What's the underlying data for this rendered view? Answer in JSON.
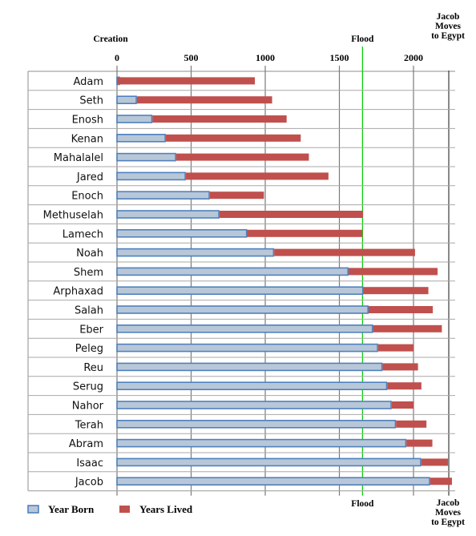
{
  "chart_data": {
    "type": "bar",
    "stacked": true,
    "orientation": "horizontal",
    "categories": [
      "Adam",
      "Seth",
      "Enosh",
      "Kenan",
      "Mahalalel",
      "Jared",
      "Enoch",
      "Methuselah",
      "Lamech",
      "Noah",
      "Shem",
      "Arphaxad",
      "Salah",
      "Eber",
      "Peleg",
      "Reu",
      "Serug",
      "Nahor",
      "Terah",
      "Abram",
      "Isaac",
      "Jacob"
    ],
    "series": [
      {
        "name": "Year Born",
        "color": "#b8c7d8",
        "edge": "#4f81bd",
        "values": [
          0,
          130,
          235,
          325,
          395,
          460,
          622,
          687,
          874,
          1056,
          1558,
          1658,
          1693,
          1723,
          1757,
          1787,
          1819,
          1849,
          1878,
          1948,
          2048,
          2108
        ]
      },
      {
        "name": "Years Lived",
        "color": "#c0504d",
        "values": [
          930,
          912,
          905,
          910,
          895,
          962,
          365,
          969,
          777,
          950,
          600,
          438,
          433,
          464,
          239,
          239,
          230,
          148,
          205,
          175,
          180,
          147
        ]
      }
    ],
    "xticks": [
      "0",
      "500",
      "1000",
      "1500",
      "2000"
    ],
    "xlim": [
      0,
      2300
    ],
    "reference_lines": [
      {
        "label": "Creation",
        "x": 0,
        "color": "#000000"
      },
      {
        "label": "Flood",
        "x": 1656,
        "color": "#00cc00"
      },
      {
        "label": "Jacob Moves to Egypt",
        "lines": [
          "Jacob",
          "Moves",
          "to Egypt"
        ],
        "x": 2238,
        "color": "#555555"
      }
    ],
    "grid": true,
    "legend": "bottom-left"
  }
}
